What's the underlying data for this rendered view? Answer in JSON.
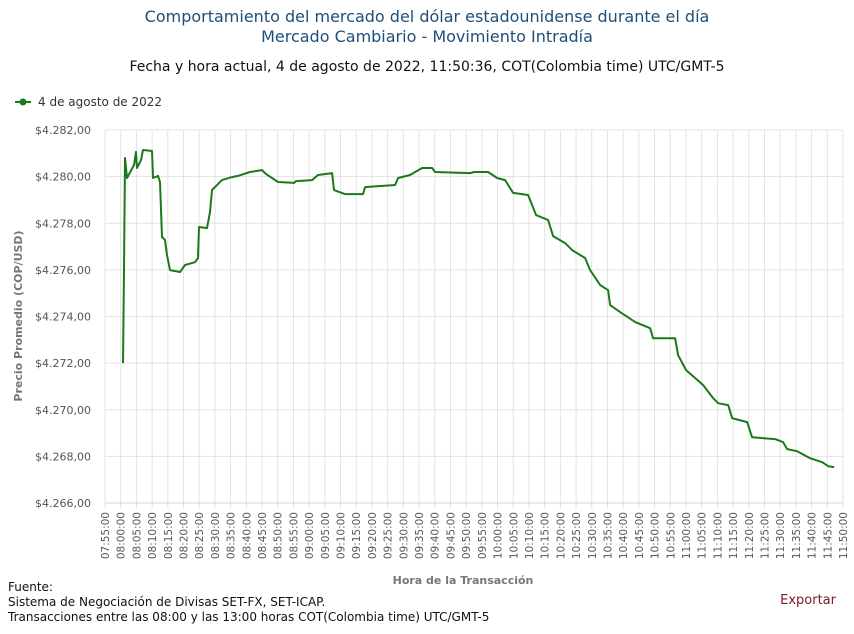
{
  "header": {
    "title_line1": "Comportamiento del mercado del dólar estadounidense durante el día",
    "title_line2": "Mercado Cambiario - Movimiento Intradía",
    "subtitle": "Fecha y hora actual, 4 de agosto de 2022, 11:50:36, COT(Colombia time) UTC/GMT-5"
  },
  "footer": {
    "source_label": "Fuente:",
    "source_line1": "Sistema de Negociación de Divisas SET-FX, SET-ICAP.",
    "source_line2": "Transacciones entre las 08:00 y las 13:00 horas COT(Colombia time) UTC/GMT-5",
    "export_label": "Exportar"
  },
  "colors": {
    "title": "#1f4e79",
    "series": "#1a7a1a",
    "export": "#7a1a2a",
    "grid": "#e3e3e3"
  },
  "chart_data": {
    "type": "line",
    "xlabel": "Hora de la Transacción",
    "ylabel": "Precio Promedio (COP/USD)",
    "legend_position": "top-left",
    "grid": true,
    "xlim": [
      "07:55:00",
      "11:50:00"
    ],
    "ylim": [
      4266,
      4282
    ],
    "x_ticks": [
      "07:55:00",
      "08:00:00",
      "08:05:00",
      "08:10:00",
      "08:15:00",
      "08:20:00",
      "08:25:00",
      "08:30:00",
      "08:35:00",
      "08:40:00",
      "08:45:00",
      "08:50:00",
      "08:55:00",
      "09:00:00",
      "09:05:00",
      "09:10:00",
      "09:15:00",
      "09:20:00",
      "09:25:00",
      "09:30:00",
      "09:35:00",
      "09:40:00",
      "09:45:00",
      "09:50:00",
      "09:55:00",
      "10:00:00",
      "10:05:00",
      "10:10:00",
      "10:15:00",
      "10:20:00",
      "10:25:00",
      "10:30:00",
      "10:35:00",
      "10:40:00",
      "10:45:00",
      "10:50:00",
      "10:55:00",
      "11:00:00",
      "11:05:00",
      "11:10:00",
      "11:15:00",
      "11:20:00",
      "11:25:00",
      "11:30:00",
      "11:35:00",
      "11:40:00",
      "11:45:00",
      "11:50:00"
    ],
    "y_ticks": [
      4266,
      4268,
      4270,
      4272,
      4274,
      4276,
      4278,
      4280,
      4282
    ],
    "y_tick_labels": [
      "$4.266,00",
      "$4.268,00",
      "$4.270,00",
      "$4.272,00",
      "$4.274,00",
      "$4.276,00",
      "$4.278,00",
      "$4.280,00",
      "$4.282,00"
    ],
    "series": [
      {
        "name": "4 de agosto de 2022",
        "color": "#1a7a1a",
        "points": [
          [
            "08:00:44",
            4272.0
          ],
          [
            "08:01:03",
            4275.99
          ],
          [
            "08:01:22",
            4280.8
          ],
          [
            "08:02:01",
            4279.94
          ],
          [
            "08:04:14",
            4280.5
          ],
          [
            "08:04:52",
            4281.06
          ],
          [
            "08:05:11",
            4280.37
          ],
          [
            "08:06:28",
            4280.71
          ],
          [
            "08:07:06",
            4281.14
          ],
          [
            "08:09:58",
            4281.1
          ],
          [
            "08:10:17",
            4279.94
          ],
          [
            "08:11:53",
            4280.03
          ],
          [
            "08:12:31",
            4279.77
          ],
          [
            "08:13:09",
            4277.41
          ],
          [
            "08:14:07",
            4277.28
          ],
          [
            "08:14:45",
            4276.64
          ],
          [
            "08:15:42",
            4275.99
          ],
          [
            "08:18:53",
            4275.91
          ],
          [
            "08:20:29",
            4276.21
          ],
          [
            "08:23:40",
            4276.33
          ],
          [
            "08:24:37",
            4276.51
          ],
          [
            "08:24:56",
            4277.84
          ],
          [
            "08:27:29",
            4277.79
          ],
          [
            "08:28:26",
            4278.48
          ],
          [
            "08:29:05",
            4279.42
          ],
          [
            "08:32:16",
            4279.85
          ],
          [
            "08:35:27",
            4279.98
          ],
          [
            "08:37:22",
            4280.03
          ],
          [
            "08:41:11",
            4280.2
          ],
          [
            "08:45:00",
            4280.28
          ],
          [
            "08:46:17",
            4280.11
          ],
          [
            "08:50:06",
            4279.77
          ],
          [
            "08:55:12",
            4279.73
          ],
          [
            "08:55:50",
            4279.81
          ],
          [
            "09:00:56",
            4279.85
          ],
          [
            "09:02:50",
            4280.07
          ],
          [
            "09:07:18",
            4280.15
          ],
          [
            "09:07:56",
            4279.42
          ],
          [
            "09:11:26",
            4279.25
          ],
          [
            "09:17:10",
            4279.25
          ],
          [
            "09:17:49",
            4279.55
          ],
          [
            "09:27:22",
            4279.64
          ],
          [
            "09:28:19",
            4279.94
          ],
          [
            "09:32:08",
            4280.07
          ],
          [
            "09:35:58",
            4280.37
          ],
          [
            "09:39:09",
            4280.37
          ],
          [
            "09:40:06",
            4280.2
          ],
          [
            "09:51:15",
            4280.15
          ],
          [
            "09:52:32",
            4280.2
          ],
          [
            "09:56:59",
            4280.2
          ],
          [
            "09:59:51",
            4279.94
          ],
          [
            "10:02:24",
            4279.85
          ],
          [
            "10:04:57",
            4279.3
          ],
          [
            "10:09:44",
            4279.21
          ],
          [
            "10:12:16",
            4278.35
          ],
          [
            "10:16:06",
            4278.14
          ],
          [
            "10:17:41",
            4277.45
          ],
          [
            "10:21:31",
            4277.15
          ],
          [
            "10:23:44",
            4276.85
          ],
          [
            "10:27:53",
            4276.51
          ],
          [
            "10:29:28",
            4275.99
          ],
          [
            "10:32:40",
            4275.35
          ],
          [
            "10:35:12",
            4275.13
          ],
          [
            "10:35:50",
            4274.49
          ],
          [
            "10:39:02",
            4274.19
          ],
          [
            "10:43:49",
            4273.76
          ],
          [
            "10:48:35",
            4273.5
          ],
          [
            "10:49:32",
            4273.07
          ],
          [
            "10:56:32",
            4273.07
          ],
          [
            "10:57:30",
            4272.34
          ],
          [
            "11:00:03",
            4271.7
          ],
          [
            "11:02:55",
            4271.36
          ],
          [
            "11:05:28",
            4271.06
          ],
          [
            "11:08:39",
            4270.5
          ],
          [
            "11:10:14",
            4270.28
          ],
          [
            "11:13:26",
            4270.2
          ],
          [
            "11:14:42",
            4269.64
          ],
          [
            "11:19:29",
            4269.47
          ],
          [
            "11:21:04",
            4268.82
          ],
          [
            "11:28:24",
            4268.74
          ],
          [
            "11:30:56",
            4268.61
          ],
          [
            "11:32:13",
            4268.31
          ],
          [
            "11:35:24",
            4268.22
          ],
          [
            "11:39:32",
            4267.92
          ],
          [
            "11:43:22",
            4267.75
          ],
          [
            "11:45:17",
            4267.58
          ],
          [
            "11:47:11",
            4267.54
          ]
        ]
      }
    ]
  }
}
